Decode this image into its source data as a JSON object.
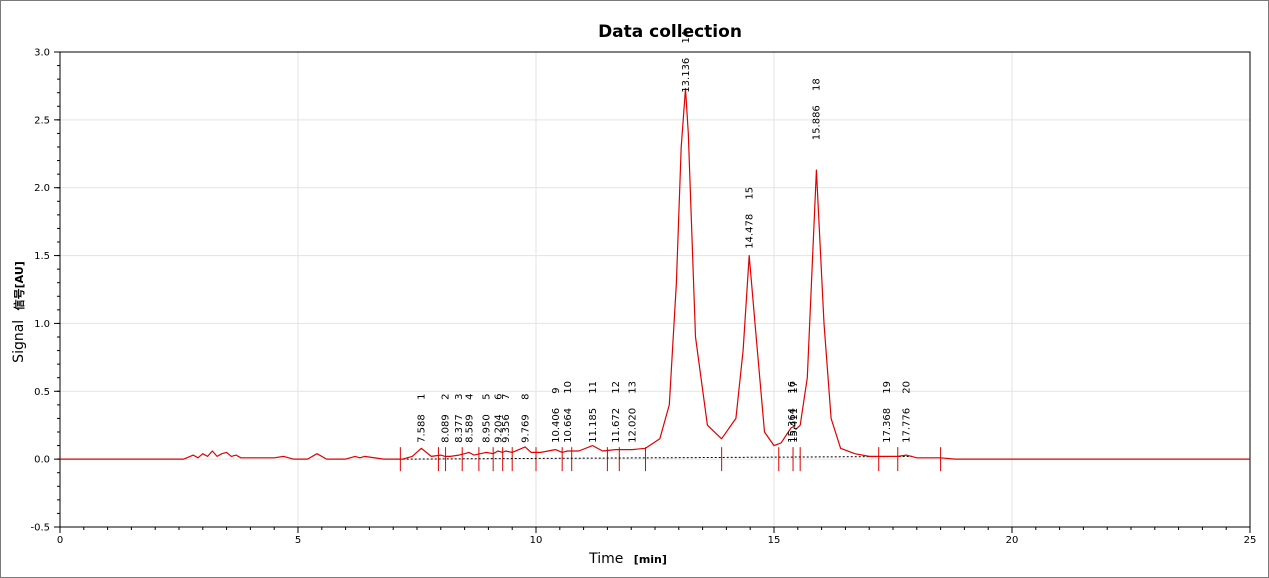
{
  "chart_data": {
    "type": "line",
    "title": "Data collection",
    "xlabel": "Time",
    "xunit": "[min]",
    "ylabel": "Signal",
    "yunit": "信号[AU]",
    "xlim": [
      0,
      25
    ],
    "ylim": [
      -0.5,
      3.0
    ],
    "x_ticks": [
      0,
      5,
      10,
      15,
      20,
      25
    ],
    "y_ticks": [
      -0.5,
      0.0,
      0.5,
      1.0,
      1.5,
      2.0,
      2.5,
      3.0
    ],
    "y_tick_labels": [
      "-0.5",
      "0.0",
      "0.5",
      "1.0",
      "1.5",
      "2.0",
      "2.5",
      "3.0"
    ],
    "grid": true,
    "line_color": "#e00000",
    "baseline_color": "#000000",
    "series": [
      {
        "color": "#e00000",
        "x": [
          0.0,
          2.6,
          2.8,
          2.9,
          3.0,
          3.1,
          3.2,
          3.3,
          3.4,
          3.5,
          3.6,
          3.7,
          3.8,
          4.5,
          4.7,
          4.9,
          5.2,
          5.4,
          5.6,
          6.0,
          6.2,
          6.3,
          6.4,
          6.8,
          7.2,
          7.4,
          7.59,
          7.8,
          8.0,
          8.09,
          8.2,
          8.38,
          8.5,
          8.59,
          8.7,
          8.95,
          9.1,
          9.2,
          9.3,
          9.36,
          9.5,
          9.77,
          9.9,
          10.1,
          10.41,
          10.55,
          10.66,
          10.9,
          11.19,
          11.4,
          11.67,
          11.85,
          12.02,
          12.3,
          12.6,
          12.8,
          12.95,
          13.05,
          13.14,
          13.2,
          13.35,
          13.6,
          13.9,
          14.2,
          14.35,
          14.48,
          14.6,
          14.8,
          15.0,
          15.15,
          15.3,
          15.36,
          15.41,
          15.46,
          15.55,
          15.7,
          15.89,
          16.05,
          16.2,
          16.4,
          16.7,
          17.0,
          17.37,
          17.6,
          17.78,
          18.0,
          18.5,
          18.8,
          25.0
        ],
        "y": [
          0.0,
          0.0,
          0.03,
          0.01,
          0.04,
          0.02,
          0.06,
          0.02,
          0.04,
          0.05,
          0.02,
          0.03,
          0.01,
          0.01,
          0.02,
          0.0,
          0.0,
          0.04,
          0.0,
          0.0,
          0.02,
          0.01,
          0.02,
          0.0,
          0.0,
          0.02,
          0.08,
          0.02,
          0.03,
          0.02,
          0.02,
          0.03,
          0.04,
          0.05,
          0.03,
          0.05,
          0.04,
          0.06,
          0.05,
          0.06,
          0.05,
          0.09,
          0.05,
          0.05,
          0.07,
          0.05,
          0.06,
          0.06,
          0.1,
          0.06,
          0.07,
          0.07,
          0.07,
          0.08,
          0.15,
          0.4,
          1.3,
          2.3,
          2.73,
          2.4,
          0.9,
          0.25,
          0.15,
          0.3,
          0.8,
          1.5,
          1.0,
          0.2,
          0.1,
          0.12,
          0.2,
          0.23,
          0.24,
          0.22,
          0.25,
          0.6,
          2.13,
          1.0,
          0.3,
          0.08,
          0.04,
          0.02,
          0.02,
          0.02,
          0.03,
          0.01,
          0.01,
          0.0,
          0.0
        ]
      }
    ],
    "baseline": {
      "x": [
        7.2,
        17.9
      ],
      "y": [
        0.0,
        0.02
      ]
    },
    "peak_markers": [
      7.15,
      7.95,
      8.1,
      8.45,
      8.8,
      9.1,
      9.3,
      9.5,
      10.0,
      10.55,
      10.75,
      11.5,
      11.75,
      12.3,
      13.9,
      15.1,
      15.4,
      15.55,
      17.2,
      17.6,
      18.5
    ],
    "peaks": [
      {
        "id": "1",
        "rt": "7.588",
        "x": 7.588
      },
      {
        "id": "2",
        "rt": "8.089",
        "x": 8.089
      },
      {
        "id": "3",
        "rt": "8.377",
        "x": 8.377
      },
      {
        "id": "4",
        "rt": "8.589",
        "x": 8.589
      },
      {
        "id": "5",
        "rt": "8.950",
        "x": 8.95
      },
      {
        "id": "6",
        "rt": "9.204",
        "x": 9.204
      },
      {
        "id": "7",
        "rt": "9.356",
        "x": 9.356
      },
      {
        "id": "8",
        "rt": "9.769",
        "x": 9.769
      },
      {
        "id": "9",
        "rt": "10.406",
        "x": 10.406
      },
      {
        "id": "10",
        "rt": "10.664",
        "x": 10.664
      },
      {
        "id": "11",
        "rt": "11.185",
        "x": 11.185
      },
      {
        "id": "12",
        "rt": "11.672",
        "x": 11.672
      },
      {
        "id": "13",
        "rt": "12.020",
        "x": 12.02
      },
      {
        "id": "14",
        "rt": "13.136",
        "x": 13.136,
        "top": 2.7
      },
      {
        "id": "15",
        "rt": "14.478",
        "x": 14.478,
        "top": 1.55
      },
      {
        "id": "16",
        "rt": "15.364",
        "x": 15.364
      },
      {
        "id": "17",
        "rt": "15.411",
        "x": 15.411
      },
      {
        "id": "18",
        "rt": "15.886",
        "x": 15.886,
        "top": 2.35
      },
      {
        "id": "19",
        "rt": "17.368",
        "x": 17.368
      },
      {
        "id": "20",
        "rt": "17.776",
        "x": 17.776
      }
    ]
  }
}
